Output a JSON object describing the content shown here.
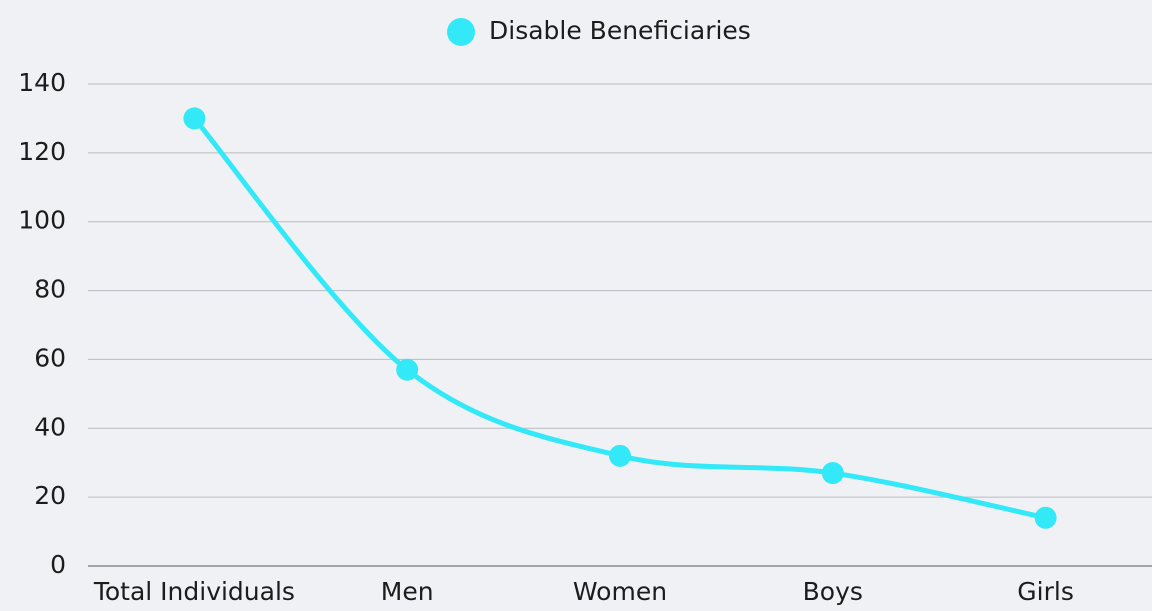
{
  "chart_data": {
    "type": "line",
    "categories": [
      "Total Individuals",
      "Men",
      "Women",
      "Boys",
      "Girls"
    ],
    "series": [
      {
        "name": "Disable Beneficiaries",
        "color": "#33e8f7",
        "values": [
          130,
          57,
          32,
          27,
          14
        ]
      }
    ],
    "ylim": [
      0,
      140
    ],
    "yticks": [
      0,
      20,
      40,
      60,
      80,
      100,
      120,
      140
    ],
    "grid": true,
    "legend": "top",
    "smooth": true
  }
}
